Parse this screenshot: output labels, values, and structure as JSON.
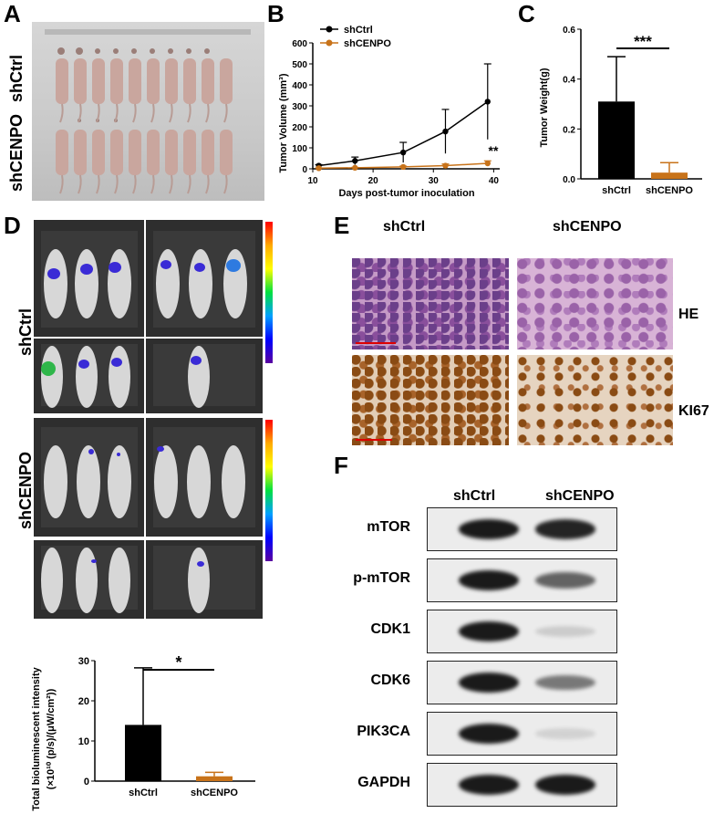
{
  "panels": {
    "A": {
      "label": "A",
      "group_labels": [
        "shCtrl",
        "shCENPO"
      ]
    },
    "B": {
      "label": "B",
      "legend": [
        "shCtrl",
        "shCENPO"
      ],
      "significance": "**"
    },
    "C": {
      "label": "C",
      "significance": "***"
    },
    "D": {
      "label": "D",
      "group_labels": [
        "shCtrl",
        "shCENPO"
      ],
      "significance": "*"
    },
    "E": {
      "label": "E",
      "col_headers": [
        "shCtrl",
        "shCENPO"
      ],
      "row_labels": [
        "HE",
        "KI67"
      ]
    },
    "F": {
      "label": "F",
      "col_headers": [
        "shCtrl",
        "shCENPO"
      ],
      "proteins": [
        "mTOR",
        "p-mTOR",
        "CDK1",
        "CDK6",
        "PIK3CA",
        "GAPDH"
      ],
      "band_intensity": [
        [
          1.0,
          0.95
        ],
        [
          1.0,
          0.65
        ],
        [
          1.0,
          0.15
        ],
        [
          1.0,
          0.55
        ],
        [
          1.0,
          0.1
        ],
        [
          1.0,
          1.0
        ]
      ]
    }
  },
  "colors": {
    "shCtrl": "#000000",
    "shCENPO": "#c8731a"
  },
  "chart_data": [
    {
      "type": "line",
      "panel": "B",
      "xlabel": "Days post-tumor inoculation",
      "ylabel": "Tumor Volume (mm³)",
      "xticks": [
        "10",
        "20",
        "30",
        "40"
      ],
      "yticks": [
        "0",
        "100",
        "200",
        "300",
        "400",
        "500",
        "600"
      ],
      "xlim": [
        10,
        41
      ],
      "ylim": [
        0,
        600
      ],
      "x": [
        11,
        17,
        25,
        32,
        39
      ],
      "series": [
        {
          "name": "shCtrl",
          "values": [
            15,
            38,
            78,
            178,
            320
          ],
          "errors": [
            5,
            18,
            48,
            105,
            180
          ]
        },
        {
          "name": "shCENPO",
          "values": [
            3,
            5,
            9,
            15,
            26
          ],
          "errors": [
            1,
            2,
            4,
            8,
            12
          ]
        }
      ]
    },
    {
      "type": "bar",
      "panel": "C",
      "ylabel": "Tumor Weight(g)",
      "yticks": [
        "0.0",
        "0.2",
        "0.4",
        "0.6"
      ],
      "ylim": [
        0,
        0.6
      ],
      "categories": [
        "shCtrl",
        "shCENPO"
      ],
      "values": [
        0.31,
        0.025
      ],
      "errors": [
        0.18,
        0.04
      ]
    },
    {
      "type": "bar",
      "panel": "D",
      "ylabel_line1": "Total bioluminescent intensity",
      "ylabel_line2": "(×10¹⁰ (p/s)/(μW/cm²))",
      "yticks": [
        "0",
        "10",
        "20",
        "30"
      ],
      "ylim": [
        0,
        30
      ],
      "categories": [
        "shCtrl",
        "shCENPO"
      ],
      "values": [
        14,
        1.2
      ],
      "errors": [
        14.2,
        1.0
      ]
    }
  ]
}
